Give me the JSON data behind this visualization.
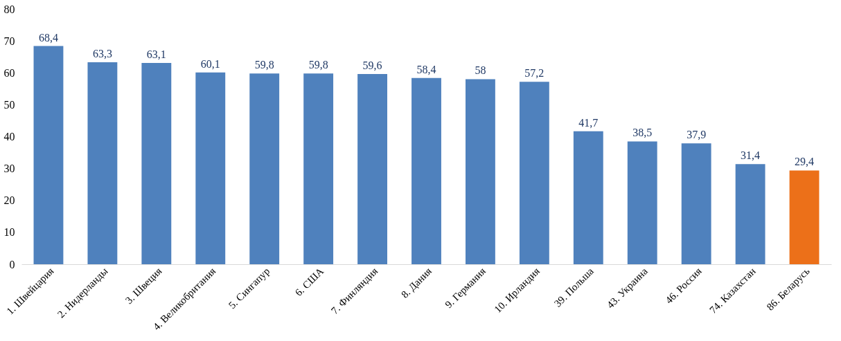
{
  "chart_data": {
    "type": "bar",
    "categories": [
      "1. Швейцария",
      "2. Нидерланды",
      "3. Швеция",
      "4. Великобритания",
      "5. Сингапур",
      "6. США",
      "7. Финляндия",
      "8. Дания",
      "9. Германия",
      "10. Ирландия",
      "39. Польша",
      "43. Украина",
      "46. Россия",
      "74. Казахстан",
      "86. Беларусь"
    ],
    "values": [
      68.4,
      63.3,
      63.1,
      60.1,
      59.8,
      59.8,
      59.6,
      58.4,
      58,
      57.2,
      41.7,
      38.5,
      37.9,
      31.4,
      29.4
    ],
    "value_labels": [
      "68,4",
      "63,3",
      "63,1",
      "60,1",
      "59,8",
      "59,8",
      "59,6",
      "58,4",
      "58",
      "57,2",
      "41,7",
      "38,5",
      "37,9",
      "31,4",
      "29,4"
    ],
    "colors": [
      "#4f81bd",
      "#4f81bd",
      "#4f81bd",
      "#4f81bd",
      "#4f81bd",
      "#4f81bd",
      "#4f81bd",
      "#4f81bd",
      "#4f81bd",
      "#4f81bd",
      "#4f81bd",
      "#4f81bd",
      "#4f81bd",
      "#4f81bd",
      "#ec7019"
    ],
    "ylim": [
      0,
      80
    ],
    "yticks": [
      0,
      10,
      20,
      30,
      40,
      50,
      60,
      70,
      80
    ],
    "grid": false,
    "legend": false
  }
}
